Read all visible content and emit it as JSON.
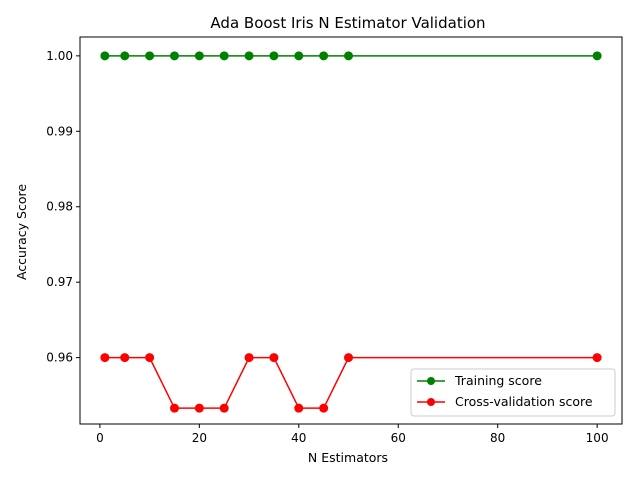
{
  "chart_data": {
    "type": "line",
    "title": "Ada Boost Iris N Estimator Validation",
    "xlabel": "N Estimators",
    "ylabel": "Accuracy Score",
    "xlim": [
      -4,
      105
    ],
    "ylim": [
      0.9512,
      1.0025
    ],
    "x_ticks": [
      0,
      20,
      40,
      60,
      80,
      100
    ],
    "y_ticks": [
      0.96,
      0.97,
      0.98,
      0.99,
      1.0
    ],
    "y_tick_format": 2,
    "grid": false,
    "legend_position": "lower-right",
    "x": [
      1,
      5,
      10,
      15,
      20,
      25,
      30,
      35,
      40,
      45,
      50,
      100
    ],
    "series": [
      {
        "name": "Training score",
        "color": "#008000",
        "values": [
          1.0,
          1.0,
          1.0,
          1.0,
          1.0,
          1.0,
          1.0,
          1.0,
          1.0,
          1.0,
          1.0,
          1.0
        ]
      },
      {
        "name": "Cross-validation score",
        "color": "#ff0000",
        "values": [
          0.96,
          0.96,
          0.96,
          0.9533,
          0.9533,
          0.9533,
          0.96,
          0.96,
          0.9533,
          0.9533,
          0.96,
          0.96
        ]
      }
    ]
  }
}
